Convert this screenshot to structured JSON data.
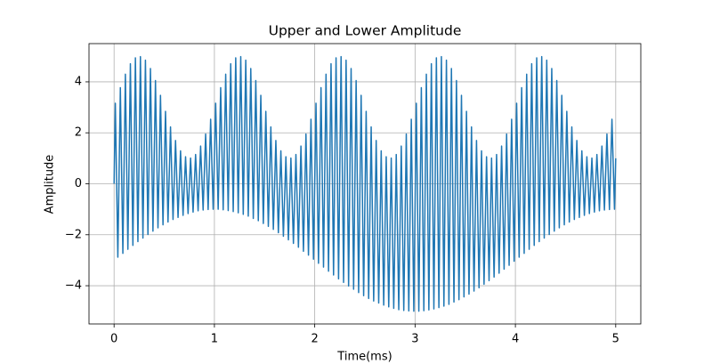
{
  "chart_data": {
    "type": "line",
    "title": "Upper and Lower Amplitude",
    "xlabel": "Time(ms)",
    "ylabel": "Amplitude",
    "color": "#1f77b4",
    "grid": true,
    "xlim": [
      -0.25,
      5.25
    ],
    "ylim": [
      -5.5,
      5.5
    ],
    "xticks": [
      0,
      1,
      2,
      3,
      4,
      5
    ],
    "yticks": [
      {
        "value": -4,
        "label": "−4"
      },
      {
        "value": -2,
        "label": "−2"
      },
      0,
      2,
      4
    ],
    "x": [
      0,
      0.0125,
      0.0375,
      0.0625,
      0.0875,
      0.1125,
      0.1375,
      0.1625,
      0.1875,
      0.2125,
      0.2375,
      0.2625,
      0.2875,
      0.3125,
      0.3375,
      0.3625,
      0.3875,
      0.4125,
      0.4375,
      0.4625,
      0.4875,
      0.5125,
      0.5375,
      0.5625,
      0.5875,
      0.6125,
      0.6375,
      0.6625,
      0.6875,
      0.7125,
      0.7375,
      0.7625,
      0.7875,
      0.8125,
      0.8375,
      0.8625,
      0.8875,
      0.9125,
      0.9375,
      0.9625,
      0.9875,
      1.0125,
      1.0375,
      1.0625,
      1.0875,
      1.1125,
      1.1375,
      1.1625,
      1.1875,
      1.2125,
      1.2375,
      1.2625,
      1.2875,
      1.3125,
      1.3375,
      1.3625,
      1.3875,
      1.4125,
      1.4375,
      1.4625,
      1.4875,
      1.5125,
      1.5375,
      1.5625,
      1.5875,
      1.6125,
      1.6375,
      1.6625,
      1.6875,
      1.7125,
      1.7375,
      1.7625,
      1.7875,
      1.8125,
      1.8375,
      1.8625,
      1.8875,
      1.9125,
      1.9375,
      1.9625,
      1.9875,
      2.0125,
      2.0375,
      2.0625,
      2.0875,
      2.1125,
      2.1375,
      2.1625,
      2.1875,
      2.2125,
      2.2375,
      2.2625,
      2.2875,
      2.3125,
      2.3375,
      2.3625,
      2.3875,
      2.4125,
      2.4375,
      2.4625,
      2.4875,
      2.5125,
      2.5375,
      2.5625,
      2.5875,
      2.6125,
      2.6375,
      2.6625,
      2.6875,
      2.7125,
      2.7375,
      2.7625,
      2.7875,
      2.8125,
      2.8375,
      2.8625,
      2.8875,
      2.9125,
      2.9375,
      2.9625,
      2.9875,
      3.0125,
      3.0375,
      3.0625,
      3.0875,
      3.1125,
      3.1375,
      3.1625,
      3.1875,
      3.2125,
      3.2375,
      3.2625,
      3.2875,
      3.3125,
      3.3375,
      3.3625,
      3.3875,
      3.4125,
      3.4375,
      3.4625,
      3.4875,
      3.5125,
      3.5375,
      3.5625,
      3.5875,
      3.6125,
      3.6375,
      3.6625,
      3.6875,
      3.7125,
      3.7375,
      3.7625,
      3.7875,
      3.8125,
      3.8375,
      3.8625,
      3.8875,
      3.9125,
      3.9375,
      3.9625,
      3.9875,
      4.0125,
      4.0375,
      4.0625,
      4.0875,
      4.1125,
      4.1375,
      4.1625,
      4.1875,
      4.2125,
      4.2375,
      4.2625,
      4.2875,
      4.3125,
      4.3375,
      4.3625,
      4.3875,
      4.4125,
      4.4375,
      4.4625,
      4.4875,
      4.5125,
      4.5375,
      4.5625,
      4.5875,
      4.6125,
      4.6375,
      4.6625,
      4.6875,
      4.7125,
      4.7375,
      4.7625,
      4.7875,
      4.8125,
      4.8375,
      4.8625,
      4.8875,
      4.9125,
      4.9375,
      4.9625,
      4.9875,
      5
    ],
    "values": [
      0,
      3.16,
      -2.88,
      3.77,
      -2.73,
      4.3,
      -2.57,
      4.71,
      -2.42,
      4.94,
      -2.27,
      4.99,
      -2.13,
      4.85,
      -1.99,
      4.52,
      -1.86,
      4.05,
      -1.73,
      3.47,
      -1.61,
      2.84,
      -1.5,
      2.23,
      -1.4,
      1.7,
      -1.32,
      1.29,
      -1.24,
      1.06,
      -1.17,
      1.01,
      -1.11,
      1.15,
      -1.06,
      1.48,
      -1.03,
      1.95,
      -1.01,
      2.53,
      -1.0,
      3.16,
      -1.0,
      3.77,
      -1.02,
      4.3,
      -1.05,
      4.71,
      -1.09,
      4.94,
      -1.14,
      4.99,
      -1.2,
      4.85,
      -1.27,
      4.52,
      -1.36,
      4.05,
      -1.45,
      3.47,
      -1.56,
      2.84,
      -1.67,
      2.23,
      -1.79,
      1.7,
      -1.92,
      1.29,
      -2.06,
      1.06,
      -2.2,
      1.01,
      -2.34,
      1.15,
      -2.49,
      1.48,
      -2.65,
      1.95,
      -2.8,
      2.53,
      -2.96,
      3.16,
      -3.12,
      3.77,
      -3.27,
      4.3,
      -3.43,
      4.71,
      -3.58,
      4.94,
      -3.73,
      4.99,
      -3.87,
      4.85,
      -4.01,
      4.52,
      -4.14,
      4.05,
      -4.27,
      3.47,
      -4.39,
      2.84,
      -4.5,
      2.23,
      -4.6,
      1.7,
      -4.68,
      1.29,
      -4.76,
      1.06,
      -4.83,
      1.01,
      -4.89,
      1.15,
      -4.94,
      1.48,
      -4.97,
      1.95,
      -4.99,
      2.53,
      -5.0,
      3.16,
      -5.0,
      3.77,
      -4.98,
      4.3,
      -4.95,
      4.71,
      -4.91,
      4.94,
      -4.86,
      4.99,
      -4.8,
      4.85,
      -4.73,
      4.52,
      -4.64,
      4.05,
      -4.55,
      3.47,
      -4.44,
      2.84,
      -4.33,
      2.23,
      -4.21,
      1.7,
      -4.08,
      1.29,
      -3.94,
      1.06,
      -3.8,
      1.01,
      -3.66,
      1.15,
      -3.51,
      1.48,
      -3.35,
      1.95,
      -3.2,
      2.53,
      -3.04,
      3.16,
      -2.88,
      3.77,
      -2.73,
      4.3,
      -2.57,
      4.71,
      -2.42,
      4.94,
      -2.27,
      4.99,
      -2.13,
      4.85,
      -1.99,
      4.52,
      -1.86,
      4.05,
      -1.73,
      3.47,
      -1.61,
      2.84,
      -1.5,
      2.23,
      -1.4,
      1.7,
      -1.32,
      1.29,
      -1.24,
      1.06,
      -1.17,
      1.01,
      -1.11,
      1.15,
      -1.06,
      1.48,
      -1.03,
      1.95,
      -1.01,
      2.53,
      -1.0,
      1
    ]
  }
}
